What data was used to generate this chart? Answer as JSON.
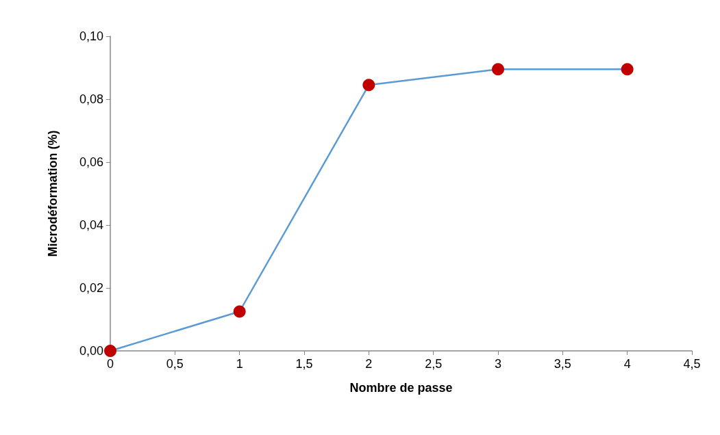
{
  "chart_data": {
    "type": "line",
    "xlabel": "Nombre de passe",
    "ylabel": "Microdéformation (%)",
    "x": [
      0,
      1,
      2,
      3,
      4
    ],
    "series": [
      {
        "color": "#5b9bd5",
        "colors": [
          "#c00000",
          "#c00000",
          "#c00000",
          "#c00000",
          "#c00000"
        ],
        "values": [
          0,
          0.0125,
          0.0845,
          0.0895,
          0.0895
        ]
      }
    ],
    "xlim": [
      0,
      4.5
    ],
    "xticks": [
      0,
      {
        "value": 0.5,
        "label": "0,5"
      },
      1,
      {
        "value": 1.5,
        "label": "1,5"
      },
      2,
      {
        "value": 2.5,
        "label": "2,5"
      },
      3,
      {
        "value": 3.5,
        "label": "3,5"
      },
      4,
      {
        "value": 4.5,
        "label": "4,5"
      }
    ],
    "ylim": [
      0,
      0.1
    ],
    "yticks": [
      {
        "value": 0,
        "label": "0,00"
      },
      {
        "value": 0.02,
        "label": "0,02"
      },
      {
        "value": 0.04,
        "label": "0,04"
      },
      {
        "value": 0.06,
        "label": "0,06"
      },
      {
        "value": 0.08,
        "label": "0,08"
      },
      {
        "value": 0.1,
        "label": "0,10"
      }
    ],
    "grid": false,
    "marker": "circle",
    "line_style": "solid"
  }
}
